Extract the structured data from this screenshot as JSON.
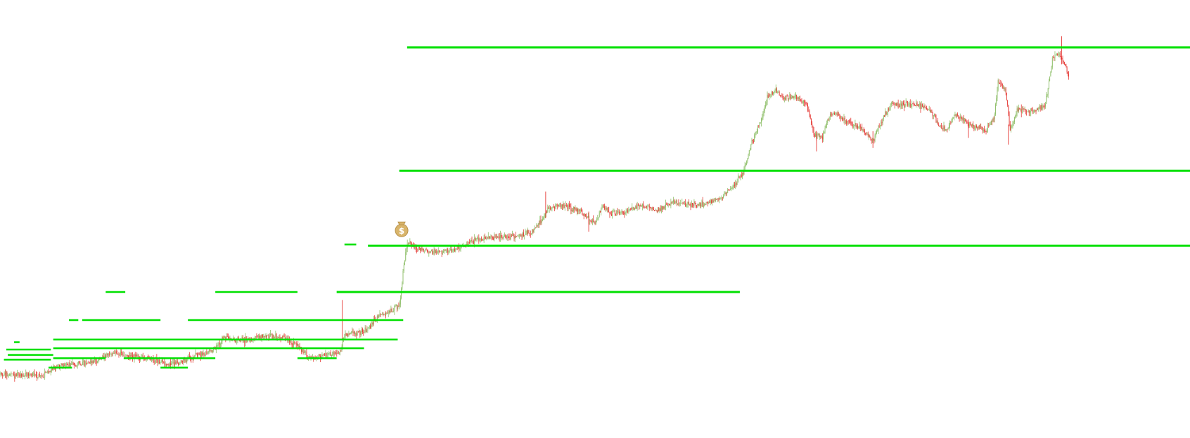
{
  "icons": {
    "marker": "money-bag-icon"
  },
  "colors": {
    "background": "#ffffff",
    "up_candle": "#8fbf6a",
    "down_candle": "#e53935",
    "level_line": "#00e000",
    "marker_bag": "#d9b56b",
    "marker_dollar": "#ffffff"
  },
  "chart_data": {
    "type": "candlestick",
    "title": "",
    "xlabel": "",
    "ylabel": "",
    "x_range": [
      0,
      1520
    ],
    "y_range": [
      0,
      524
    ],
    "grid": false,
    "legend": "none",
    "trend_anchors": [
      [
        0,
        8
      ],
      [
        20,
        5
      ],
      [
        40,
        7
      ],
      [
        55,
        4
      ],
      [
        60,
        10
      ],
      [
        70,
        18
      ],
      [
        90,
        22
      ],
      [
        110,
        24
      ],
      [
        130,
        30
      ],
      [
        145,
        40
      ],
      [
        160,
        34
      ],
      [
        180,
        33
      ],
      [
        200,
        28
      ],
      [
        215,
        22
      ],
      [
        230,
        25
      ],
      [
        245,
        33
      ],
      [
        260,
        38
      ],
      [
        275,
        45
      ],
      [
        285,
        62
      ],
      [
        300,
        58
      ],
      [
        320,
        60
      ],
      [
        340,
        64
      ],
      [
        360,
        62
      ],
      [
        380,
        50
      ],
      [
        395,
        32
      ],
      [
        410,
        34
      ],
      [
        425,
        38
      ],
      [
        435,
        42
      ],
      [
        440,
        65
      ],
      [
        460,
        70
      ],
      [
        470,
        75
      ],
      [
        480,
        90
      ],
      [
        490,
        98
      ],
      [
        500,
        102
      ],
      [
        510,
        110
      ],
      [
        515,
        160
      ],
      [
        520,
        205
      ],
      [
        530,
        198
      ],
      [
        545,
        190
      ],
      [
        560,
        190
      ],
      [
        580,
        192
      ],
      [
        600,
        205
      ],
      [
        620,
        210
      ],
      [
        640,
        212
      ],
      [
        660,
        214
      ],
      [
        680,
        220
      ],
      [
        690,
        235
      ],
      [
        700,
        255
      ],
      [
        710,
        260
      ],
      [
        720,
        258
      ],
      [
        740,
        252
      ],
      [
        750,
        240
      ],
      [
        760,
        235
      ],
      [
        770,
        258
      ],
      [
        780,
        248
      ],
      [
        800,
        250
      ],
      [
        820,
        260
      ],
      [
        840,
        252
      ],
      [
        860,
        265
      ],
      [
        880,
        260
      ],
      [
        900,
        262
      ],
      [
        920,
        270
      ],
      [
        940,
        292
      ],
      [
        950,
        310
      ],
      [
        960,
        352
      ],
      [
        970,
        380
      ],
      [
        980,
        420
      ],
      [
        990,
        432
      ],
      [
        1000,
        420
      ],
      [
        1015,
        422
      ],
      [
        1030,
        410
      ],
      [
        1040,
        365
      ],
      [
        1050,
        360
      ],
      [
        1060,
        395
      ],
      [
        1070,
        395
      ],
      [
        1080,
        385
      ],
      [
        1100,
        375
      ],
      [
        1115,
        355
      ],
      [
        1130,
        395
      ],
      [
        1140,
        410
      ],
      [
        1160,
        410
      ],
      [
        1175,
        408
      ],
      [
        1190,
        400
      ],
      [
        1200,
        375
      ],
      [
        1210,
        372
      ],
      [
        1220,
        395
      ],
      [
        1240,
        378
      ],
      [
        1260,
        372
      ],
      [
        1270,
        392
      ],
      [
        1275,
        446
      ],
      [
        1285,
        430
      ],
      [
        1290,
        372
      ],
      [
        1300,
        402
      ],
      [
        1320,
        402
      ],
      [
        1335,
        408
      ],
      [
        1345,
        482
      ],
      [
        1352,
        486
      ],
      [
        1360,
        468
      ],
      [
        1366,
        450
      ]
    ],
    "level_lines": [
      {
        "x0": 520,
        "x1": 1520,
        "y": 495
      },
      {
        "x0": 510,
        "x1": 1520,
        "y": 311
      },
      {
        "x0": 470,
        "x1": 1520,
        "y": 199
      },
      {
        "x0": 430,
        "x1": 945,
        "y": 130
      },
      {
        "x0": 275,
        "x1": 380,
        "y": 130
      },
      {
        "x0": 105,
        "x1": 205,
        "y": 88
      },
      {
        "x0": 240,
        "x1": 515,
        "y": 88
      },
      {
        "x0": 68,
        "x1": 508,
        "y": 59
      },
      {
        "x0": 68,
        "x1": 465,
        "y": 46
      },
      {
        "x0": 8,
        "x1": 65,
        "y": 44
      },
      {
        "x0": 10,
        "x1": 68,
        "y": 36
      },
      {
        "x0": 5,
        "x1": 65,
        "y": 29
      },
      {
        "x0": 68,
        "x1": 135,
        "y": 31
      },
      {
        "x0": 158,
        "x1": 275,
        "y": 31
      },
      {
        "x0": 380,
        "x1": 430,
        "y": 31
      },
      {
        "x0": 62,
        "x1": 92,
        "y": 17
      },
      {
        "x0": 205,
        "x1": 240,
        "y": 17
      },
      {
        "x0": 440,
        "x1": 455,
        "y": 201
      },
      {
        "x0": 135,
        "x1": 160,
        "y": 130
      },
      {
        "x0": 88,
        "x1": 100,
        "y": 88
      },
      {
        "x0": 18,
        "x1": 25,
        "y": 55
      }
    ],
    "marker": {
      "x": 513,
      "y": 225
    }
  }
}
